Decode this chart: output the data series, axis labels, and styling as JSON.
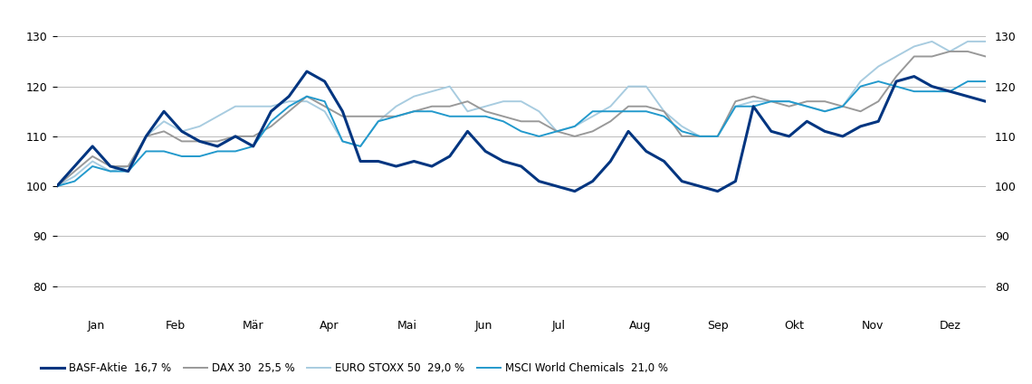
{
  "months": [
    "Jan",
    "Feb",
    "Mär",
    "Apr",
    "Mai",
    "Jun",
    "Jul",
    "Aug",
    "Sep",
    "Okt",
    "Nov",
    "Dez"
  ],
  "ylim": [
    75,
    135
  ],
  "yticks": [
    80,
    90,
    100,
    110,
    120,
    130
  ],
  "colors": {
    "basf": "#003580",
    "dax": "#999999",
    "euro_stoxx": "#a8cce0",
    "msci": "#2299cc"
  },
  "linewidths": {
    "basf": 2.2,
    "dax": 1.4,
    "euro_stoxx": 1.4,
    "msci": 1.4
  },
  "legend": [
    {
      "label": "BASF-Aktie",
      "pct": "16,7 %",
      "color": "#003580",
      "lw": 2.2
    },
    {
      "label": "DAX 30",
      "pct": "25,5 %",
      "color": "#999999",
      "lw": 1.4
    },
    {
      "label": "EURO STOXX 50",
      "pct": "29,0 %",
      "color": "#a8cce0",
      "lw": 1.4
    },
    {
      "label": "MSCI World Chemicals",
      "pct": "21,0 %",
      "color": "#2299cc",
      "lw": 1.4
    }
  ],
  "basf": [
    100,
    104,
    108,
    104,
    103,
    110,
    115,
    111,
    109,
    108,
    110,
    108,
    115,
    118,
    123,
    121,
    115,
    105,
    105,
    104,
    105,
    104,
    106,
    111,
    107,
    105,
    104,
    101,
    100,
    99,
    101,
    105,
    111,
    107,
    105,
    101,
    100,
    99,
    101,
    116,
    111,
    110,
    113,
    111,
    110,
    112,
    113,
    121,
    122,
    120,
    119,
    118,
    117
  ],
  "dax": [
    100,
    103,
    106,
    104,
    104,
    110,
    111,
    109,
    109,
    109,
    110,
    110,
    112,
    115,
    118,
    116,
    114,
    114,
    114,
    114,
    115,
    116,
    116,
    117,
    115,
    114,
    113,
    113,
    111,
    110,
    111,
    113,
    116,
    116,
    115,
    110,
    110,
    110,
    117,
    118,
    117,
    116,
    117,
    117,
    116,
    115,
    117,
    122,
    126,
    126,
    127,
    127,
    126
  ],
  "euro_stoxx": [
    100,
    102,
    105,
    103,
    104,
    110,
    113,
    111,
    112,
    114,
    116,
    116,
    116,
    117,
    117,
    115,
    109,
    108,
    113,
    116,
    118,
    119,
    120,
    115,
    116,
    117,
    117,
    115,
    111,
    112,
    114,
    116,
    120,
    120,
    115,
    112,
    110,
    110,
    116,
    117,
    117,
    117,
    116,
    115,
    116,
    121,
    124,
    126,
    128,
    129,
    127,
    129,
    129
  ],
  "msci": [
    100,
    101,
    104,
    103,
    103,
    107,
    107,
    106,
    106,
    107,
    107,
    108,
    113,
    116,
    118,
    117,
    109,
    108,
    113,
    114,
    115,
    115,
    114,
    114,
    114,
    113,
    111,
    110,
    111,
    112,
    115,
    115,
    115,
    115,
    114,
    111,
    110,
    110,
    116,
    116,
    117,
    117,
    116,
    115,
    116,
    120,
    121,
    120,
    119,
    119,
    119,
    121,
    121
  ]
}
